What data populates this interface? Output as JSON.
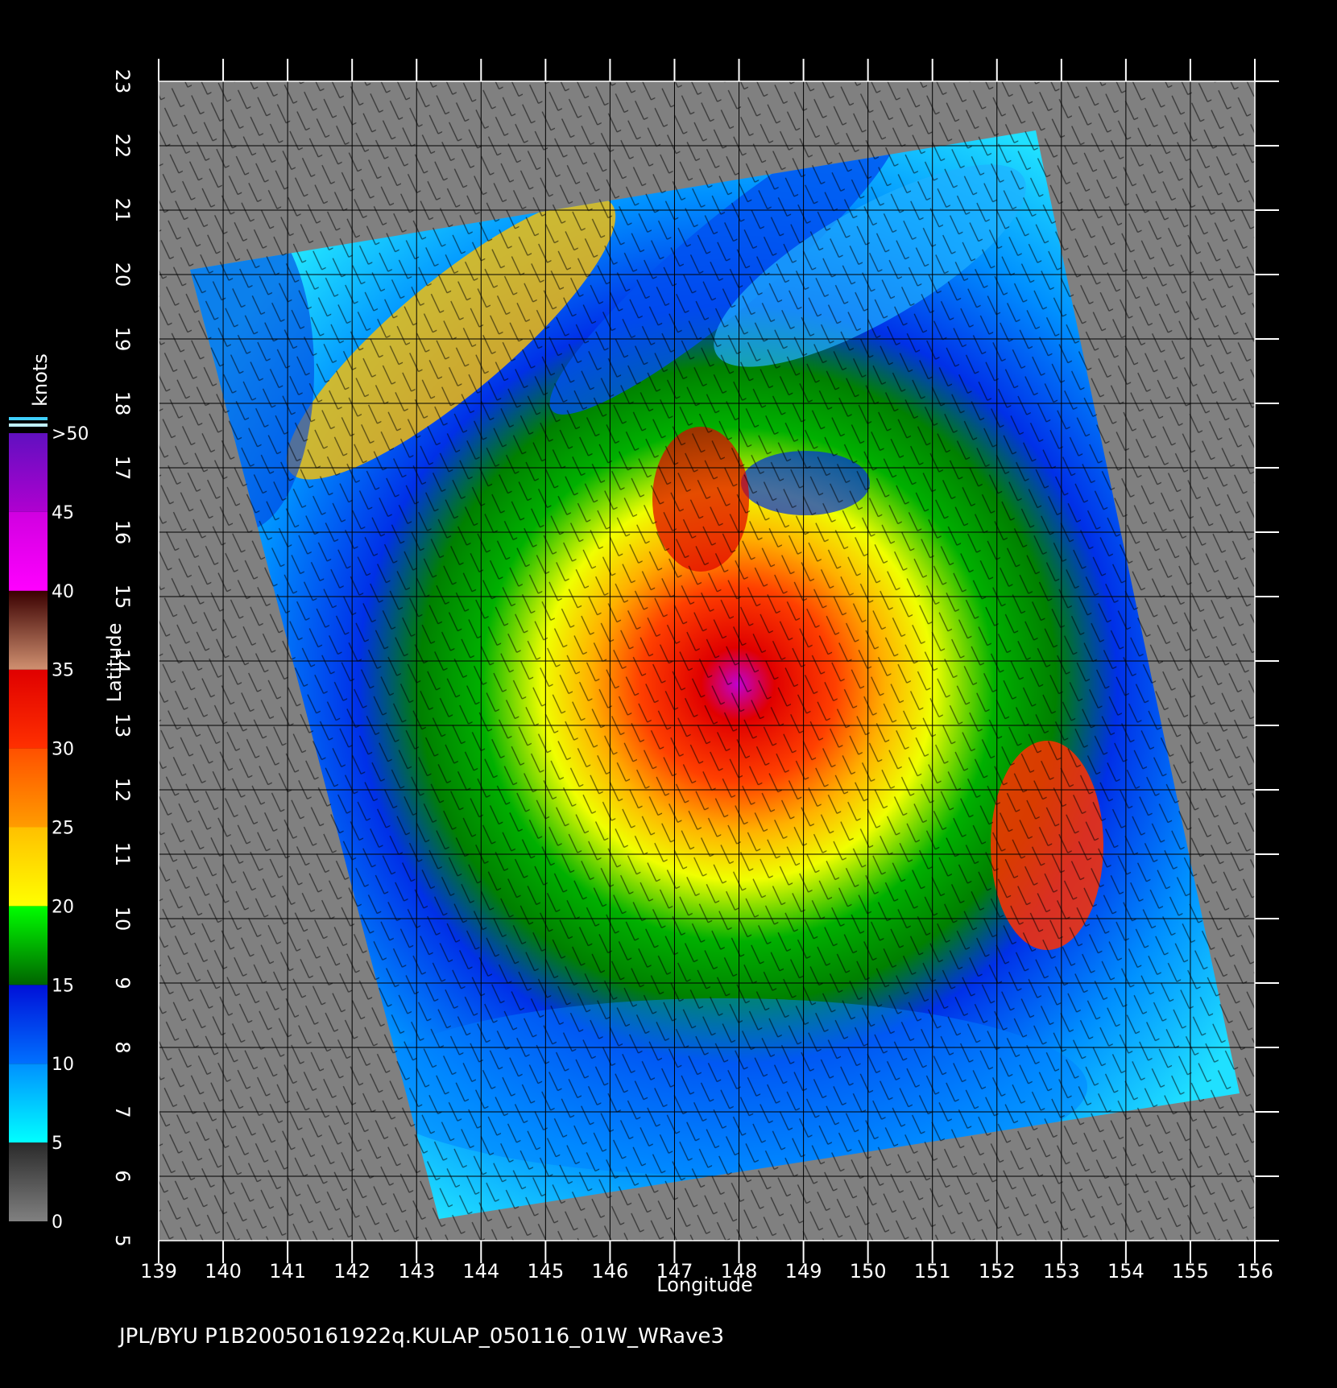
{
  "map": {
    "xlabel": "Longitude",
    "ylabel": "Latitude",
    "xlim": [
      139,
      156
    ],
    "ylim": [
      5,
      23
    ],
    "xticks": [
      139,
      140,
      141,
      142,
      143,
      144,
      145,
      146,
      147,
      148,
      149,
      150,
      151,
      152,
      153,
      154,
      155,
      156
    ],
    "yticks": [
      5,
      6,
      7,
      8,
      9,
      10,
      11,
      12,
      13,
      14,
      15,
      16,
      17,
      18,
      19,
      20,
      21,
      22,
      23
    ],
    "grid": true,
    "colorbar": {
      "label": "knots",
      "ticks": [
        0,
        5,
        10,
        15,
        20,
        25,
        30,
        35,
        40,
        45,
        {
          "value": 50,
          "label": ">50"
        }
      ],
      "colors": [
        [
          "#808080",
          "#2a2a2a"
        ],
        [
          "#00ffff",
          "#0090ff"
        ],
        [
          "#0070ff",
          "#0010d8"
        ],
        [
          "#006400",
          "#00ff00"
        ],
        [
          "#ffff00",
          "#ffc000"
        ],
        [
          "#ff9c00",
          "#ff5000"
        ],
        [
          "#ff3000",
          "#e00000"
        ],
        [
          "#d09070",
          "#3a0000"
        ],
        [
          "#ff00ff",
          "#d000e0"
        ],
        [
          "#b000d0",
          "#6010c0"
        ]
      ]
    },
    "footer": "JPL/BYU  P1B20050161922q.KULAP_050116_01W_WRave3"
  }
}
